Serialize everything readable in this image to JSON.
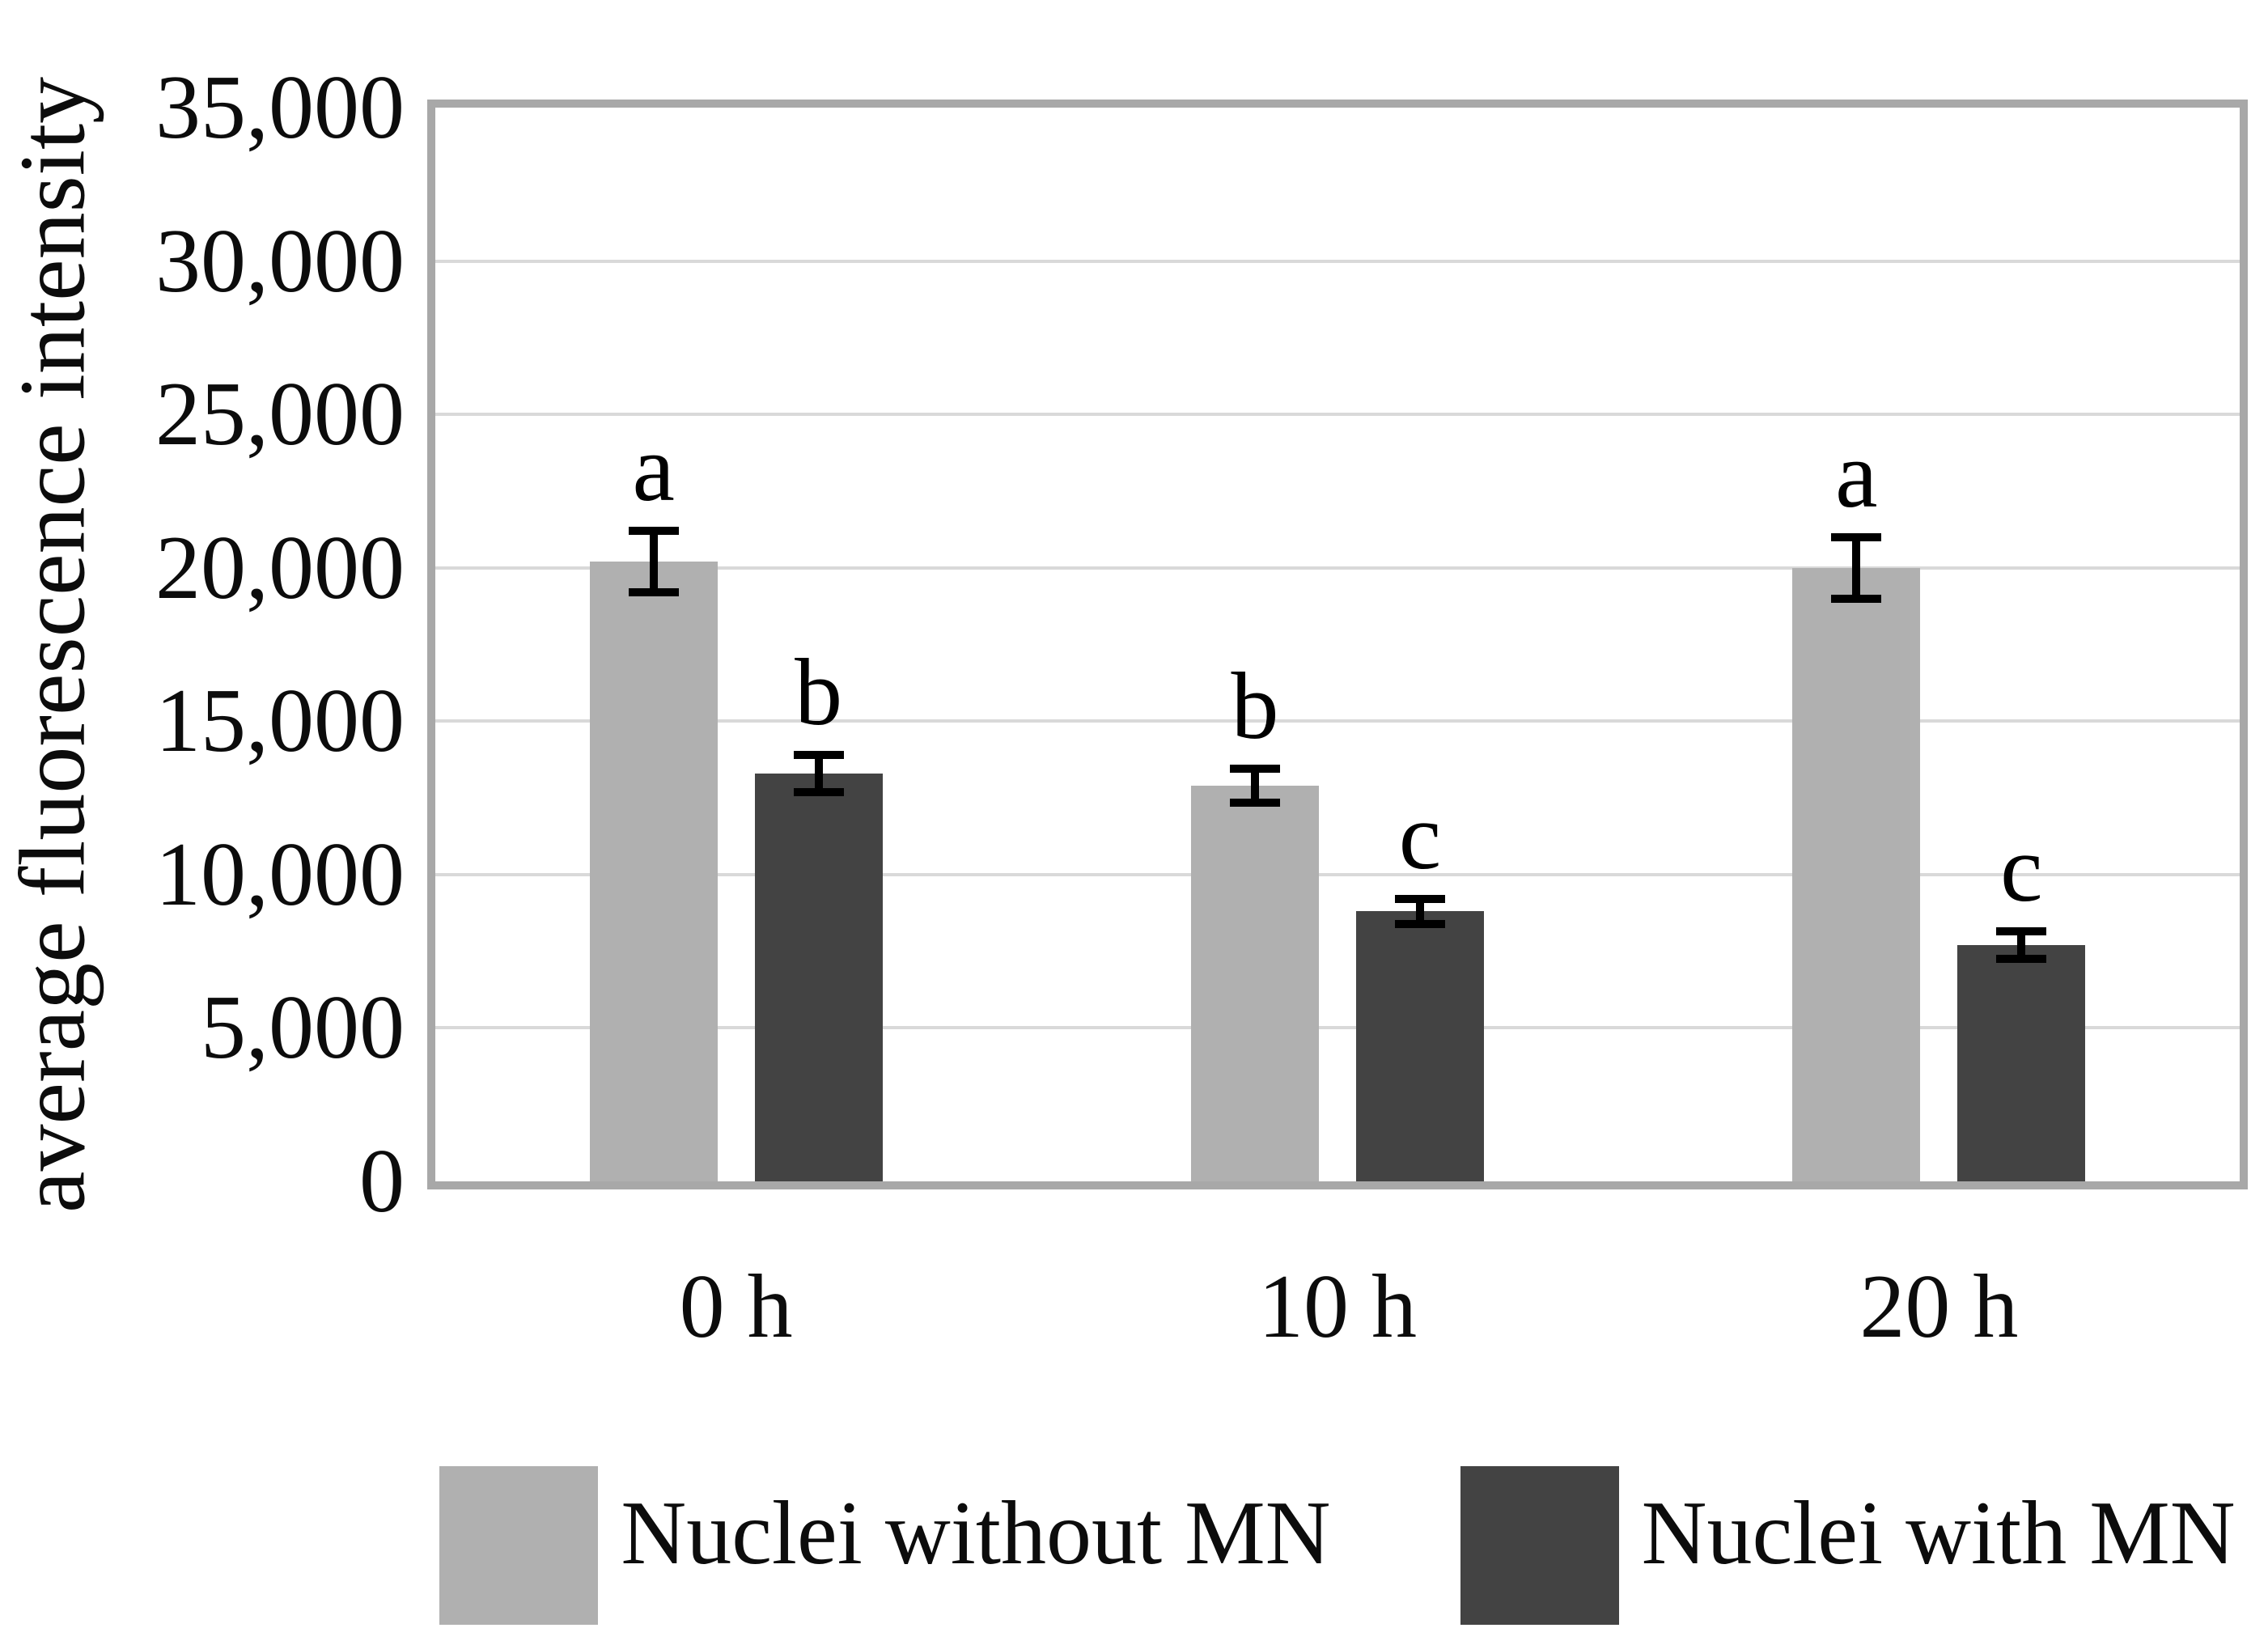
{
  "page": {
    "background": "#ffffff"
  },
  "chart_data": {
    "type": "bar",
    "title": "",
    "ylabel": "average fluorescence intensity",
    "xlabel": "",
    "categories": [
      "0 h",
      "10 h",
      "20 h"
    ],
    "series": [
      {
        "name": "Nuclei without MN",
        "color": "#b0b0b0",
        "values": [
          20200,
          12900,
          20000
        ],
        "errors": [
          1000,
          550,
          1000
        ],
        "sig_letters": [
          "a",
          "b",
          "a"
        ]
      },
      {
        "name": "Nuclei with MN",
        "color": "#434343",
        "values": [
          13300,
          8800,
          7700
        ],
        "errors": [
          600,
          400,
          450
        ],
        "sig_letters": [
          "b",
          "c",
          "c"
        ]
      }
    ],
    "ylim": [
      0,
      35000
    ],
    "ytick_step": 5000,
    "y_tick_labels": [
      "35,000",
      "30,000",
      "25,000",
      "20,000",
      "15,000",
      "10,000",
      "5,000",
      "0"
    ],
    "grid": true,
    "gridline_color": "#d9d9d9",
    "plot_border_color": "#a8a8a8",
    "error_bar_color": "#000000",
    "legend_position": "bottom"
  }
}
